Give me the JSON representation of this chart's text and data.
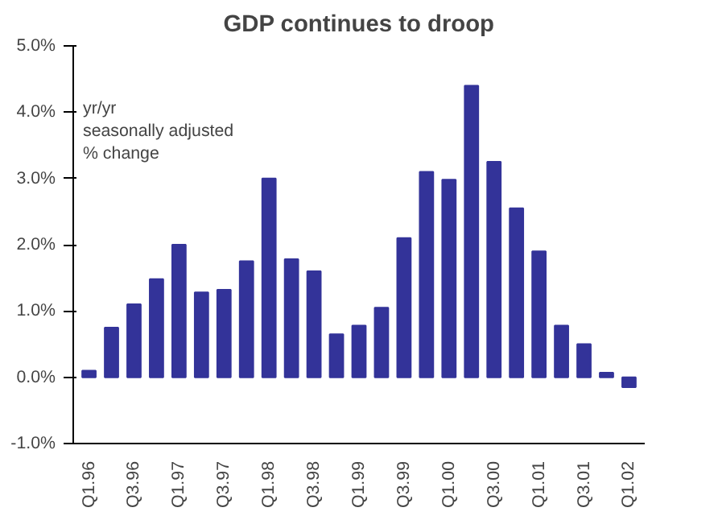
{
  "chart_data": {
    "type": "bar",
    "title": "GDP continues to droop",
    "categories": [
      "Q1.96",
      null,
      "Q3.96",
      null,
      "Q1.97",
      null,
      "Q3.97",
      null,
      "Q1.98",
      null,
      "Q3.98",
      null,
      "Q1.99",
      null,
      "Q3.99",
      null,
      "Q1.00",
      null,
      "Q3.00",
      null,
      "Q1.01",
      null,
      "Q3.01",
      null,
      "Q1.02"
    ],
    "values": [
      0.1,
      0.75,
      1.1,
      1.48,
      2.0,
      1.28,
      1.32,
      1.75,
      3.0,
      1.78,
      1.6,
      0.65,
      0.78,
      1.05,
      2.1,
      3.1,
      2.98,
      4.4,
      3.25,
      2.55,
      1.9,
      0.78,
      0.5,
      0.07,
      -0.15
    ],
    "color": "#333399",
    "ylim": [
      -1,
      5
    ],
    "yticks": [
      {
        "value": -1,
        "label": "-1.0%"
      },
      {
        "value": 0,
        "label": "0.0%"
      },
      {
        "value": 1,
        "label": "1.0%"
      },
      {
        "value": 2,
        "label": "2.0%"
      },
      {
        "value": 3,
        "label": "3.0%"
      },
      {
        "value": 4,
        "label": "4.0%"
      },
      {
        "value": 5,
        "label": "5.0%"
      }
    ],
    "annotations": [
      "yr/yr",
      "seasonally adjusted",
      "% change"
    ],
    "grid": false
  }
}
